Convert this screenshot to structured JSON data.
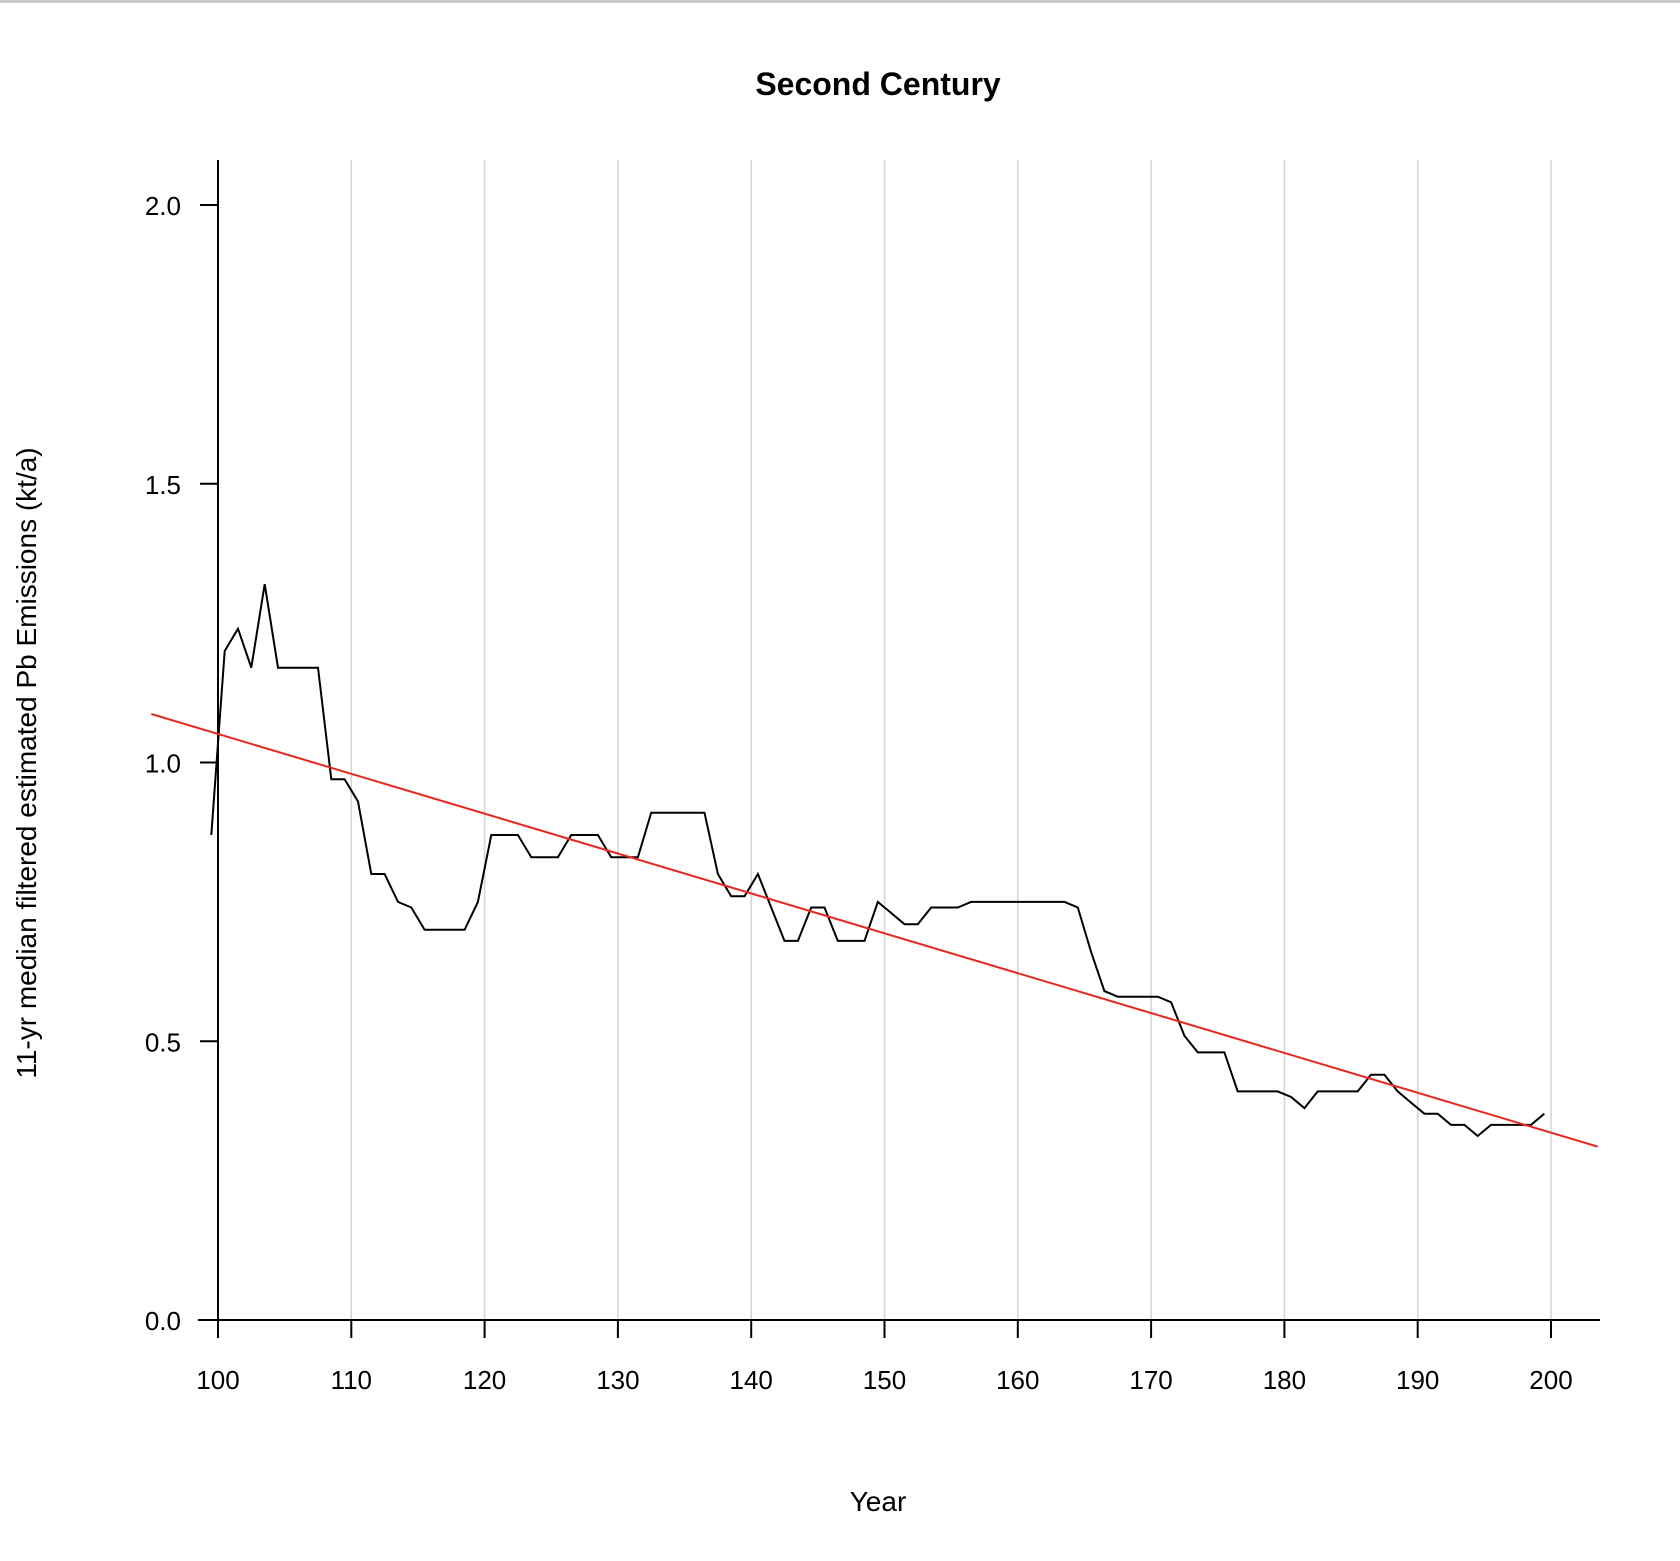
{
  "chart_data": {
    "type": "line",
    "title": "Second Century",
    "xlabel": "Year",
    "ylabel": "11-yr median filtered estimated Pb Emissions (kt/a)",
    "xlim": [
      99.5,
      203.5
    ],
    "ylim": [
      0.0,
      2.08
    ],
    "x_ticks": [
      100,
      110,
      120,
      130,
      140,
      150,
      160,
      170,
      180,
      190,
      200
    ],
    "x_tick_labels": [
      "100",
      "110",
      "120",
      "130",
      "140",
      "150",
      "160",
      "170",
      "180",
      "190",
      "200"
    ],
    "y_ticks": [
      0.0,
      0.5,
      1.0,
      1.5,
      2.0
    ],
    "y_tick_labels": [
      "0.0",
      "0.5",
      "1.0",
      "1.5",
      "2.0"
    ],
    "grid": "vertical lines at x ticks",
    "legend": "none",
    "colors": {
      "series": "#000000",
      "trend": "#e8281e",
      "grid": "#d3d3d3",
      "axis": "#000000"
    },
    "series": [
      {
        "x": [
          99.5,
          100.5,
          101.5,
          102.5,
          103.5,
          104.5,
          105.5,
          106.5,
          107.5,
          108.5,
          109.5,
          110.5,
          111.5,
          112.5,
          113.5,
          114.5,
          115.5,
          116.5,
          117.5,
          118.5,
          119.5,
          120.5,
          121.5,
          122.5,
          123.5,
          124.5,
          125.5,
          126.5,
          127.5,
          128.5,
          129.5,
          130.5,
          131.5,
          132.5,
          133.5,
          134.5,
          135.5,
          136.5,
          137.5,
          138.5,
          139.5,
          140.5,
          141.5,
          142.5,
          143.5,
          144.5,
          145.5,
          146.5,
          147.5,
          148.5,
          149.5,
          150.5,
          151.5,
          152.5,
          153.5,
          154.5,
          155.5,
          156.5,
          157.5,
          158.5,
          159.5,
          160.5,
          161.5,
          162.5,
          163.5,
          164.5,
          165.5,
          166.5,
          167.5,
          168.5,
          169.5,
          170.5,
          171.5,
          172.5,
          173.5,
          174.5,
          175.5,
          176.5,
          177.5,
          178.5,
          179.5,
          180.5,
          181.5,
          182.5,
          183.5,
          184.5,
          185.5,
          186.5,
          187.5,
          188.5,
          189.5,
          190.5,
          191.5,
          192.5,
          193.5,
          194.5,
          195.5,
          196.5,
          197.5,
          198.5,
          199.5
        ],
        "values": [
          0.87,
          1.2,
          1.24,
          1.17,
          1.32,
          1.17,
          1.17,
          1.17,
          1.17,
          0.97,
          0.97,
          0.93,
          0.8,
          0.8,
          0.75,
          0.74,
          0.7,
          0.7,
          0.7,
          0.7,
          0.75,
          0.87,
          0.87,
          0.87,
          0.83,
          0.83,
          0.83,
          0.87,
          0.87,
          0.87,
          0.83,
          0.83,
          0.83,
          0.91,
          0.91,
          0.91,
          0.91,
          0.91,
          0.8,
          0.76,
          0.76,
          0.8,
          0.74,
          0.68,
          0.68,
          0.74,
          0.74,
          0.68,
          0.68,
          0.68,
          0.75,
          0.73,
          0.71,
          0.71,
          0.74,
          0.74,
          0.74,
          0.75,
          0.75,
          0.75,
          0.75,
          0.75,
          0.75,
          0.75,
          0.75,
          0.74,
          0.66,
          0.59,
          0.58,
          0.58,
          0.58,
          0.58,
          0.57,
          0.51,
          0.48,
          0.48,
          0.48,
          0.41,
          0.41,
          0.41,
          0.41,
          0.4,
          0.38,
          0.41,
          0.41,
          0.41,
          0.41,
          0.44,
          0.44,
          0.41,
          0.39,
          0.37,
          0.37,
          0.35,
          0.35,
          0.33,
          0.35,
          0.35,
          0.35,
          0.35,
          0.37
        ]
      }
    ],
    "trend_line": {
      "x": [
        95,
        203.5
      ],
      "values": [
        1.087,
        0.311
      ]
    }
  }
}
